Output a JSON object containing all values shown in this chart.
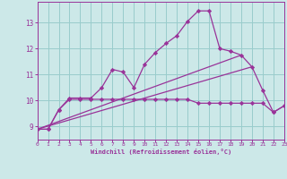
{
  "background_color": "#cce8e8",
  "grid_color": "#99cccc",
  "line_color": "#993399",
  "xlabel": "Windchill (Refroidissement éolien,°C)",
  "xlim": [
    0,
    23
  ],
  "ylim": [
    8.5,
    13.8
  ],
  "yticks": [
    9,
    10,
    11,
    12,
    13
  ],
  "xticks": [
    0,
    1,
    2,
    3,
    4,
    5,
    6,
    7,
    8,
    9,
    10,
    11,
    12,
    13,
    14,
    15,
    16,
    17,
    18,
    19,
    20,
    21,
    22,
    23
  ],
  "series1_x": [
    0,
    1,
    2,
    3,
    4,
    5,
    6,
    7,
    8,
    9,
    10,
    11,
    12,
    13,
    14,
    15,
    16,
    17,
    18,
    19,
    20,
    21,
    22,
    23
  ],
  "series1_y": [
    8.9,
    8.9,
    9.65,
    10.1,
    10.1,
    10.1,
    10.5,
    11.2,
    11.1,
    10.5,
    11.4,
    11.85,
    12.2,
    12.5,
    13.05,
    13.45,
    13.45,
    12.0,
    11.9,
    11.75,
    11.3,
    10.4,
    9.55,
    9.8
  ],
  "series2_x": [
    0,
    1,
    2,
    3,
    4,
    5,
    6,
    7,
    8,
    9,
    10,
    11,
    12,
    13,
    14,
    15,
    16,
    17,
    18,
    19,
    20,
    21,
    22,
    23
  ],
  "series2_y": [
    8.9,
    8.9,
    9.65,
    10.05,
    10.05,
    10.05,
    10.05,
    10.05,
    10.05,
    10.05,
    10.05,
    10.05,
    10.05,
    10.05,
    10.05,
    9.9,
    9.9,
    9.9,
    9.9,
    9.9,
    9.9,
    9.9,
    9.55,
    9.8
  ],
  "series3_x": [
    0,
    20
  ],
  "series3_y": [
    8.9,
    11.3
  ],
  "series4_x": [
    0,
    19
  ],
  "series4_y": [
    8.9,
    11.75
  ]
}
